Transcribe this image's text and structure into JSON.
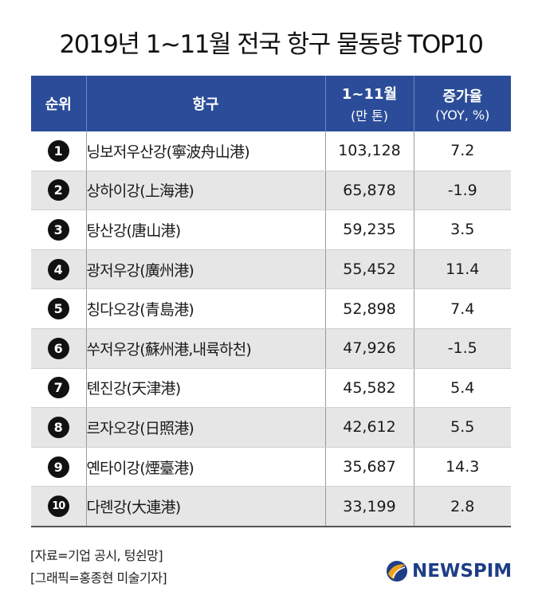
{
  "title": "2019년 1~11월 전국 항구 물동량 TOP10",
  "headers": {
    "rank": "순위",
    "port": "항구",
    "volume": "1~11월",
    "volume_unit": "(만 톤)",
    "growth": "증가율",
    "growth_unit": "(YOY, %)"
  },
  "chart_data": {
    "type": "table",
    "title": "2019년 1~11월 전국 항구 물동량 TOP10",
    "columns": [
      "순위",
      "항구",
      "1~11월 (만 톤)",
      "증가율 (YOY, %)"
    ],
    "rows": [
      {
        "rank": "1",
        "port": "닝보저우산강(寧波舟山港)",
        "volume": "103,128",
        "growth": "7.2"
      },
      {
        "rank": "2",
        "port": "상하이강(上海港)",
        "volume": "65,878",
        "growth": "-1.9"
      },
      {
        "rank": "3",
        "port": "탕산강(唐山港)",
        "volume": "59,235",
        "growth": "3.5"
      },
      {
        "rank": "4",
        "port": "광저우강(廣州港)",
        "volume": "55,452",
        "growth": "11.4"
      },
      {
        "rank": "5",
        "port": "칭다오강(青島港)",
        "volume": "52,898",
        "growth": "7.4"
      },
      {
        "rank": "6",
        "port": "쑤저우강(蘇州港,내륙하천)",
        "volume": "47,926",
        "growth": "-1.5"
      },
      {
        "rank": "7",
        "port": "톈진강(天津港)",
        "volume": "45,582",
        "growth": "5.4"
      },
      {
        "rank": "8",
        "port": "르자오강(日照港)",
        "volume": "42,612",
        "growth": "5.5"
      },
      {
        "rank": "9",
        "port": "옌타이강(煙臺港)",
        "volume": "35,687",
        "growth": "14.3"
      },
      {
        "rank": "10",
        "port": "다롄강(大連港)",
        "volume": "33,199",
        "growth": "2.8"
      }
    ]
  },
  "source": "[자료=기업 공시, 텅쉰망]",
  "graphic_credit": "[그래픽=홍종현 미술기자]",
  "logo": {
    "text": "NEWSPIM",
    "icon": "newspim-logo-icon"
  },
  "colors": {
    "header_bg": "#2b4c98",
    "stripe_bg": "#e6e6e6",
    "logo": "#1e3e86"
  }
}
